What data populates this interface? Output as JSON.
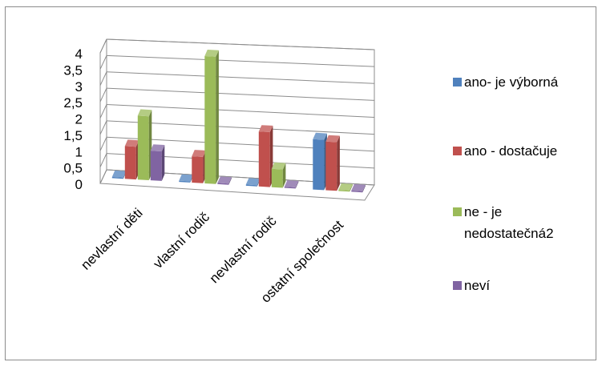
{
  "chart_data": {
    "type": "bar",
    "categories": [
      "nevlastní děti",
      "vlastní rodič",
      "nevlastní rodič",
      "ostatní společnost"
    ],
    "series": [
      {
        "name": "ano- je výborná",
        "color": "#4f81bd",
        "values": [
          0,
          0,
          0,
          1.5
        ]
      },
      {
        "name": "ano - dostačuje",
        "color": "#c0504d",
        "values": [
          1,
          0.8,
          1.65,
          1.45
        ]
      },
      {
        "name": "ne - je nedostatečná2",
        "color": "#9bbb59",
        "values": [
          1.95,
          3.85,
          0.55,
          0
        ]
      },
      {
        "name": "neví",
        "color": "#8064a2",
        "values": [
          0.9,
          0,
          0,
          0
        ]
      }
    ],
    "ylim": [
      0,
      4
    ],
    "yticks": [
      "0",
      "0,5",
      "1",
      "1,5",
      "2",
      "2,5",
      "3",
      "3,5",
      "4"
    ],
    "grid": true,
    "legend": "right",
    "style": "3d-clustered-column"
  }
}
